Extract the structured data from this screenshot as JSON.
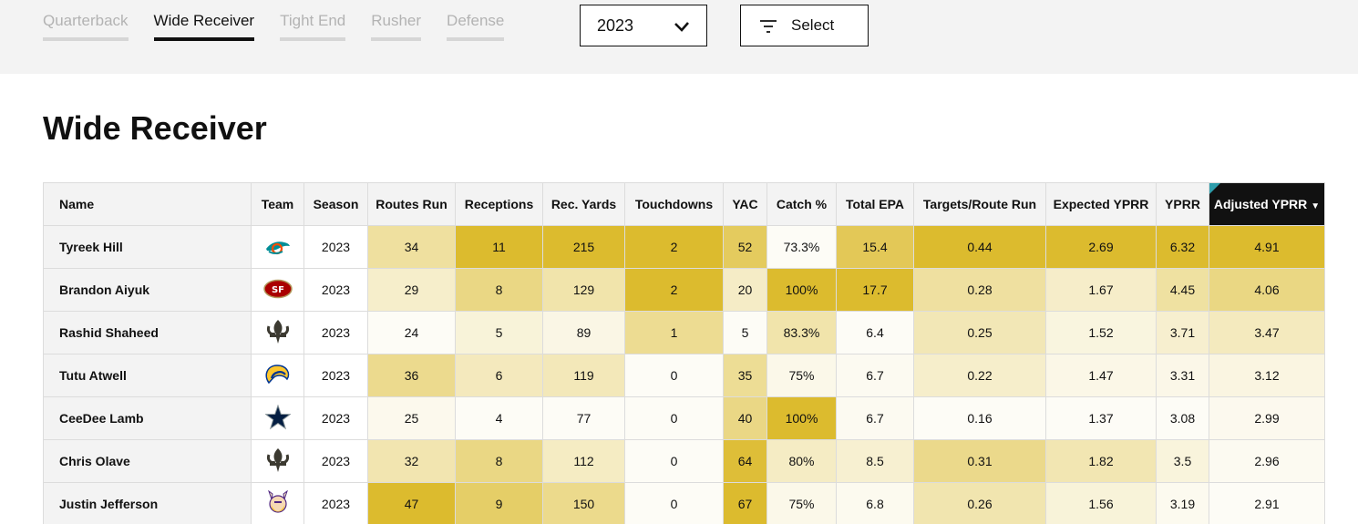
{
  "tabs": [
    {
      "label": "Quarterback",
      "active": false
    },
    {
      "label": "Wide Receiver",
      "active": true
    },
    {
      "label": "Tight End",
      "active": false
    },
    {
      "label": "Rusher",
      "active": false
    },
    {
      "label": "Defense",
      "active": false
    }
  ],
  "season_select": {
    "value": "2023"
  },
  "filter_button": {
    "label": "Select"
  },
  "page_title": "Wide Receiver",
  "table": {
    "headers": {
      "name": "Name",
      "team": "Team",
      "season": "Season",
      "routes": "Routes Run",
      "receptions": "Receptions",
      "rec_yards": "Rec. Yards",
      "touchdowns": "Touchdowns",
      "yac": "YAC",
      "catch_pct": "Catch %",
      "total_epa": "Total EPA",
      "targets_route": "Targets/Route Run",
      "expected_yprr": "Expected YPRR",
      "yprr": "YPRR",
      "adjusted_yprr": "Adjusted YPRR"
    },
    "sort_indicator": "▼",
    "rows": [
      {
        "name": "Tyreek Hill",
        "team_icon": "dolphins-logo-icon",
        "season": "2023",
        "routes": "34",
        "receptions": "11",
        "rec_yards": "215",
        "touchdowns": "2",
        "yac": "52",
        "catch_pct": "73.3%",
        "total_epa": "15.4",
        "targets_route": "0.44",
        "expected_yprr": "2.69",
        "yprr": "6.32",
        "adjusted_yprr": "4.91"
      },
      {
        "name": "Brandon Aiyuk",
        "team_icon": "49ers-logo-icon",
        "season": "2023",
        "routes": "29",
        "receptions": "8",
        "rec_yards": "129",
        "touchdowns": "2",
        "yac": "20",
        "catch_pct": "100%",
        "total_epa": "17.7",
        "targets_route": "0.28",
        "expected_yprr": "1.67",
        "yprr": "4.45",
        "adjusted_yprr": "4.06"
      },
      {
        "name": "Rashid Shaheed",
        "team_icon": "saints-logo-icon",
        "season": "2023",
        "routes": "24",
        "receptions": "5",
        "rec_yards": "89",
        "touchdowns": "1",
        "yac": "5",
        "catch_pct": "83.3%",
        "total_epa": "6.4",
        "targets_route": "0.25",
        "expected_yprr": "1.52",
        "yprr": "3.71",
        "adjusted_yprr": "3.47"
      },
      {
        "name": "Tutu Atwell",
        "team_icon": "rams-logo-icon",
        "season": "2023",
        "routes": "36",
        "receptions": "6",
        "rec_yards": "119",
        "touchdowns": "0",
        "yac": "35",
        "catch_pct": "75%",
        "total_epa": "6.7",
        "targets_route": "0.22",
        "expected_yprr": "1.47",
        "yprr": "3.31",
        "adjusted_yprr": "3.12"
      },
      {
        "name": "CeeDee Lamb",
        "team_icon": "cowboys-logo-icon",
        "season": "2023",
        "routes": "25",
        "receptions": "4",
        "rec_yards": "77",
        "touchdowns": "0",
        "yac": "40",
        "catch_pct": "100%",
        "total_epa": "6.7",
        "targets_route": "0.16",
        "expected_yprr": "1.37",
        "yprr": "3.08",
        "adjusted_yprr": "2.99"
      },
      {
        "name": "Chris Olave",
        "team_icon": "saints-logo-icon",
        "season": "2023",
        "routes": "32",
        "receptions": "8",
        "rec_yards": "112",
        "touchdowns": "0",
        "yac": "64",
        "catch_pct": "80%",
        "total_epa": "8.5",
        "targets_route": "0.31",
        "expected_yprr": "1.82",
        "yprr": "3.5",
        "adjusted_yprr": "2.96"
      },
      {
        "name": "Justin Jefferson",
        "team_icon": "vikings-logo-icon",
        "season": "2023",
        "routes": "47",
        "receptions": "9",
        "rec_yards": "150",
        "touchdowns": "0",
        "yac": "67",
        "catch_pct": "75%",
        "total_epa": "6.8",
        "targets_route": "0.26",
        "expected_yprr": "1.56",
        "yprr": "3.19",
        "adjusted_yprr": "2.91"
      }
    ]
  },
  "colors": {
    "heat_max": "#dcbb2e",
    "heat_min": "#fdfcf6",
    "active_header_bg": "#111111",
    "sort_corner": "#2f9dab"
  }
}
